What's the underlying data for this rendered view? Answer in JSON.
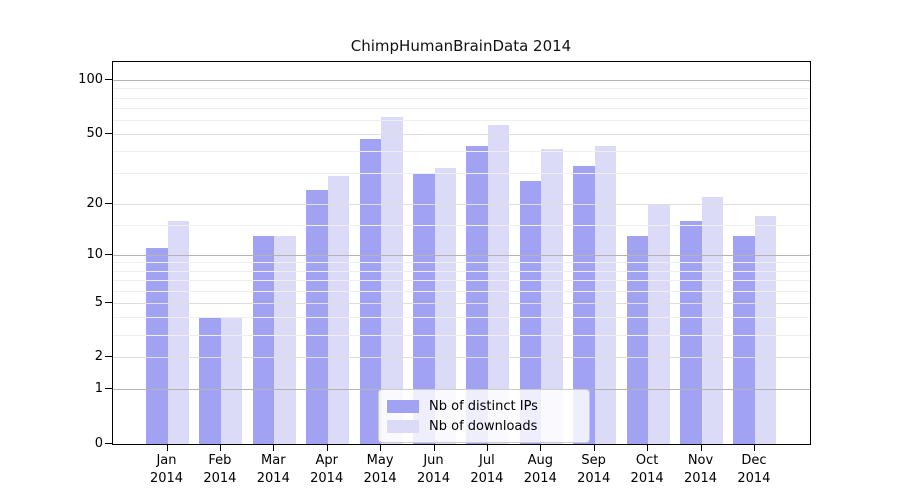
{
  "title": "ChimpHumanBrainData 2014",
  "chart_data": {
    "type": "bar",
    "title": "ChimpHumanBrainData 2014",
    "xlabel": "",
    "ylabel": "",
    "y_scale": "log1p",
    "ylim": [
      0,
      126
    ],
    "grid": true,
    "legend_position": "bottom-center",
    "categories": [
      "Jan 2014",
      "Feb 2014",
      "Mar 2014",
      "Apr 2014",
      "May 2014",
      "Jun 2014",
      "Jul 2014",
      "Aug 2014",
      "Sep 2014",
      "Oct 2014",
      "Nov 2014",
      "Dec 2014"
    ],
    "series": [
      {
        "name": "Nb of distinct IPs",
        "color": "#a2a2f3",
        "values": [
          11,
          4,
          13,
          24,
          47,
          30,
          43,
          27,
          33,
          13,
          16,
          13
        ]
      },
      {
        "name": "Nb of downloads",
        "color": "#dbdbf8",
        "values": [
          16,
          4,
          13,
          29,
          62,
          32,
          56,
          41,
          43,
          20,
          22,
          17
        ]
      }
    ],
    "y_ticks": [
      100,
      50,
      20,
      10,
      5,
      2,
      1,
      0
    ],
    "y_gridlines_major": [
      1,
      10,
      100
    ],
    "y_gridlines_mid": [
      2,
      5,
      20,
      50
    ],
    "y_gridlines_minor": [
      3,
      4,
      6,
      7,
      8,
      9,
      15,
      30,
      40,
      60,
      70,
      80,
      90
    ],
    "colors": {
      "spine": "#000000",
      "grid_major": "#b3b3b3",
      "grid_mid": "#dedede",
      "grid_minor": "#efefef",
      "legend_border": "#cccccc"
    }
  }
}
